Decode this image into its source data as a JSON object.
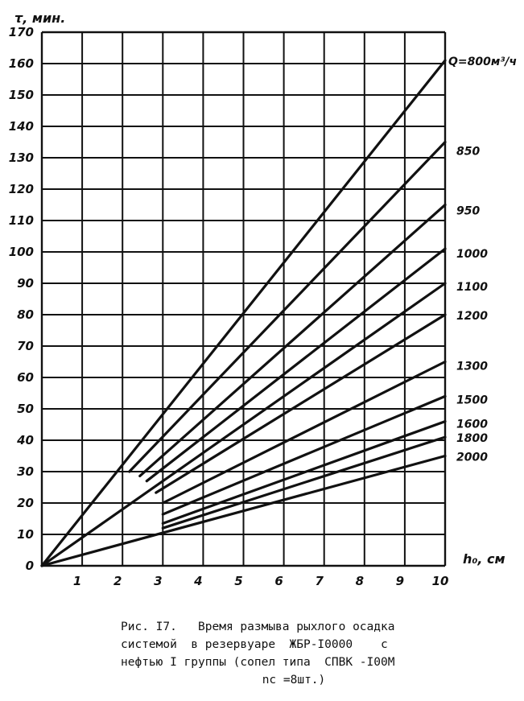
{
  "chart_data": {
    "type": "line",
    "title": "",
    "ylabel": "τ, мин.",
    "xlabel": "h₀, см",
    "xlim": [
      0,
      10
    ],
    "ylim": [
      0,
      170
    ],
    "grid": true,
    "x_ticks": [
      "1",
      "2",
      "3",
      "4",
      "5",
      "6",
      "7",
      "8",
      "9",
      "10"
    ],
    "y_ticks": [
      "0",
      "10",
      "20",
      "30",
      "40",
      "50",
      "60",
      "70",
      "80",
      "90",
      "100",
      "110",
      "120",
      "130",
      "140",
      "150",
      "160",
      "170"
    ],
    "origin_label": "0",
    "series_label_placement": "right",
    "series": [
      {
        "name": "Q=800м³/ч",
        "points": [
          [
            0,
            0
          ],
          [
            10,
            161
          ]
        ]
      },
      {
        "name": "850",
        "points": [
          [
            2.17,
            30
          ],
          [
            10,
            135
          ]
        ]
      },
      {
        "name": "950",
        "points": [
          [
            2.43,
            28.6
          ],
          [
            10,
            115
          ]
        ]
      },
      {
        "name": "1000",
        "points": [
          [
            2.6,
            27
          ],
          [
            10,
            101
          ]
        ]
      },
      {
        "name": "1100",
        "points": [
          [
            0,
            0
          ],
          [
            10,
            90
          ]
        ]
      },
      {
        "name": "1200",
        "points": [
          [
            2.83,
            23.3
          ],
          [
            10,
            80
          ]
        ]
      },
      {
        "name": "1300",
        "points": [
          [
            3,
            20
          ],
          [
            10,
            65
          ]
        ]
      },
      {
        "name": "1500",
        "points": [
          [
            3,
            16.4
          ],
          [
            10,
            54
          ]
        ]
      },
      {
        "name": "1600",
        "points": [
          [
            3,
            13.5
          ],
          [
            10,
            46
          ]
        ]
      },
      {
        "name": "1800",
        "points": [
          [
            3,
            12
          ],
          [
            10,
            41
          ]
        ]
      },
      {
        "name": "2000",
        "points": [
          [
            0,
            0
          ],
          [
            10,
            35
          ]
        ]
      }
    ],
    "line_color": "#111111"
  },
  "caption": {
    "line1": "Рис. I7.   Время размыва рыхлого осадка",
    "line2": "системой  в резервуаре  ЖБР-I0000    с",
    "line3": "нефтью I группы (сопел типа  СПВК -I00М",
    "line4": "nс =8шт.)"
  }
}
